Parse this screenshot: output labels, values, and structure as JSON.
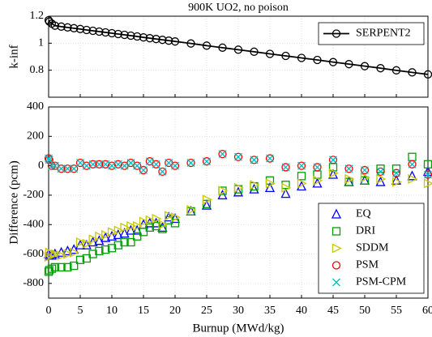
{
  "chart_data": [
    {
      "type": "line",
      "title": "900K UO2, no poison",
      "ylabel": "k-inf",
      "x": [
        0,
        0.1,
        0.5,
        1,
        2,
        3,
        4,
        5,
        6,
        7,
        8,
        9,
        10,
        11,
        12,
        13,
        14,
        15,
        16,
        17,
        18,
        19,
        20,
        22.5,
        25,
        27.5,
        30,
        32.5,
        35,
        37.5,
        40,
        42.5,
        45,
        47.5,
        50,
        52.5,
        55,
        57.5,
        60
      ],
      "series": [
        {
          "name": "SERPENT2",
          "color": "#000000",
          "marker": "circle",
          "values": [
            1.17,
            1.16,
            1.145,
            1.13,
            1.123,
            1.117,
            1.111,
            1.105,
            1.098,
            1.092,
            1.086,
            1.08,
            1.074,
            1.068,
            1.062,
            1.056,
            1.05,
            1.043,
            1.037,
            1.031,
            1.025,
            1.019,
            1.013,
            0.998,
            0.982,
            0.967,
            0.952,
            0.937,
            0.921,
            0.906,
            0.891,
            0.876,
            0.86,
            0.845,
            0.83,
            0.815,
            0.799,
            0.784,
            0.769
          ]
        }
      ],
      "xlim": [
        0,
        60
      ],
      "xticks": [
        0,
        5,
        10,
        15,
        20,
        25,
        30,
        35,
        40,
        45,
        50,
        55,
        60
      ],
      "ylim": [
        0.6,
        1.2
      ],
      "yticks": [
        0.8,
        1,
        1.2
      ],
      "grid": true,
      "legend": "upper right"
    },
    {
      "type": "scatter",
      "xlabel": "Burnup (MWd/kg)",
      "ylabel": "Difference (pcm)",
      "x": [
        0,
        0.1,
        0.5,
        1,
        2,
        3,
        4,
        5,
        6,
        7,
        8,
        9,
        10,
        11,
        12,
        13,
        14,
        15,
        16,
        17,
        18,
        19,
        20,
        22.5,
        25,
        27.5,
        30,
        32.5,
        35,
        37.5,
        40,
        42.5,
        45,
        47.5,
        50,
        52.5,
        55,
        57.5,
        60
      ],
      "series": [
        {
          "name": "EQ",
          "color": "#0000ff",
          "marker": "triangle-up",
          "values": [
            -600,
            -610,
            -610,
            -600,
            -590,
            -580,
            -570,
            -540,
            -540,
            -520,
            -510,
            -490,
            -480,
            -470,
            -460,
            -440,
            -440,
            -400,
            -390,
            -390,
            -420,
            -350,
            -360,
            -310,
            -270,
            -200,
            -180,
            -160,
            -150,
            -190,
            -140,
            -120,
            -60,
            -110,
            -100,
            -110,
            -100,
            -70,
            -40
          ]
        },
        {
          "name": "DRI",
          "color": "#00a000",
          "marker": "square",
          "values": [
            -720,
            -710,
            -700,
            -690,
            -690,
            -690,
            -680,
            -640,
            -630,
            -600,
            -580,
            -570,
            -560,
            -540,
            -520,
            -520,
            -480,
            -450,
            -420,
            -410,
            -430,
            -370,
            -390,
            -310,
            -260,
            -170,
            -160,
            -140,
            -100,
            -130,
            -70,
            -60,
            -10,
            -110,
            -100,
            -20,
            -20,
            60,
            10
          ]
        },
        {
          "name": "SDDM",
          "color": "#c8c800",
          "marker": "triangle-right",
          "values": [
            -620,
            -590,
            -600,
            -600,
            -610,
            -600,
            -590,
            -520,
            -530,
            -500,
            -480,
            -470,
            -450,
            -440,
            -420,
            -410,
            -410,
            -380,
            -370,
            -360,
            -400,
            -340,
            -350,
            -300,
            -230,
            -170,
            -150,
            -130,
            -120,
            -150,
            -120,
            -100,
            -50,
            -90,
            -80,
            -90,
            -110,
            -90,
            -120
          ]
        },
        {
          "name": "PSM",
          "color": "#ff0000",
          "marker": "circle",
          "values": [
            50,
            40,
            0,
            0,
            -20,
            -20,
            -20,
            20,
            0,
            10,
            10,
            10,
            0,
            10,
            0,
            20,
            0,
            -30,
            30,
            10,
            -40,
            20,
            0,
            20,
            30,
            80,
            60,
            40,
            50,
            -10,
            0,
            -10,
            40,
            -20,
            -30,
            -40,
            -50,
            10,
            -60
          ]
        },
        {
          "name": "PSM-CPM",
          "color": "#00c0c0",
          "marker": "x",
          "values": [
            50,
            40,
            0,
            0,
            -20,
            -20,
            -20,
            20,
            0,
            10,
            10,
            10,
            0,
            10,
            0,
            20,
            0,
            -30,
            30,
            10,
            -40,
            20,
            0,
            20,
            30,
            80,
            60,
            40,
            50,
            -10,
            0,
            -10,
            40,
            -20,
            -30,
            -40,
            -50,
            10,
            -60
          ]
        }
      ],
      "xlim": [
        0,
        60
      ],
      "xticks": [
        0,
        5,
        10,
        15,
        20,
        25,
        30,
        35,
        40,
        45,
        50,
        55,
        60
      ],
      "ylim": [
        -900,
        400
      ],
      "yticks": [
        -800,
        -600,
        -400,
        -200,
        0,
        200,
        400
      ],
      "grid": true,
      "legend": "lower right"
    }
  ]
}
